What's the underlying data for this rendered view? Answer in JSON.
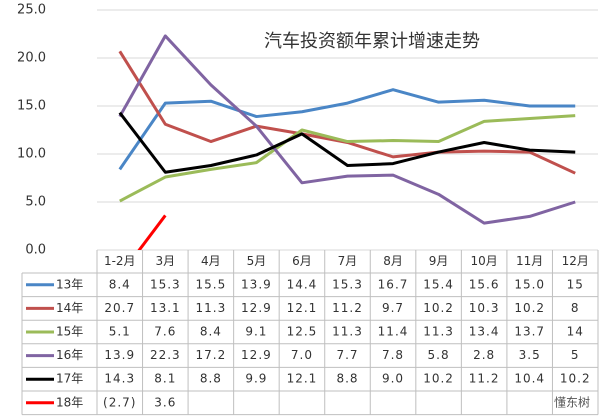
{
  "chart_data": {
    "type": "line",
    "title": "汽车投资额年累计增速走势",
    "categories": [
      "1-2月",
      "3月",
      "4月",
      "5月",
      "6月",
      "7月",
      "8月",
      "9月",
      "10月",
      "11月",
      "12月"
    ],
    "series": [
      {
        "name": "13年",
        "color": "#4a86c6",
        "values": [
          8.4,
          15.3,
          15.5,
          13.9,
          14.4,
          15.3,
          16.7,
          15.4,
          15.6,
          15.0,
          15
        ],
        "value_labels": [
          "8.4",
          "15.3",
          "15.5",
          "13.9",
          "14.4",
          "15.3",
          "16.7",
          "15.4",
          "15.6",
          "15.0",
          "15"
        ]
      },
      {
        "name": "14年",
        "color": "#c0504d",
        "values": [
          20.7,
          13.1,
          11.3,
          12.9,
          12.1,
          11.2,
          9.7,
          10.2,
          10.3,
          10.2,
          8
        ],
        "value_labels": [
          "20.7",
          "13.1",
          "11.3",
          "12.9",
          "12.1",
          "11.2",
          "9.7",
          "10.2",
          "10.3",
          "10.2",
          "8"
        ]
      },
      {
        "name": "15年",
        "color": "#9bbb59",
        "values": [
          5.1,
          7.6,
          8.4,
          9.1,
          12.5,
          11.3,
          11.4,
          11.3,
          13.4,
          13.7,
          14
        ],
        "value_labels": [
          "5.1",
          "7.6",
          "8.4",
          "9.1",
          "12.5",
          "11.3",
          "11.4",
          "11.3",
          "13.4",
          "13.7",
          "14"
        ]
      },
      {
        "name": "16年",
        "color": "#8064a2",
        "values": [
          13.9,
          22.3,
          17.2,
          12.9,
          7.0,
          7.7,
          7.8,
          5.8,
          2.8,
          3.5,
          5
        ],
        "value_labels": [
          "13.9",
          "22.3",
          "17.2",
          "12.9",
          "7.0",
          "7.7",
          "7.8",
          "5.8",
          "2.8",
          "3.5",
          "5"
        ]
      },
      {
        "name": "17年",
        "color": "#000000",
        "values": [
          14.3,
          8.1,
          8.8,
          9.9,
          12.1,
          8.8,
          9.0,
          10.2,
          11.2,
          10.4,
          10.2
        ],
        "value_labels": [
          "14.3",
          "8.1",
          "8.8",
          "9.9",
          "12.1",
          "8.8",
          "9.0",
          "10.2",
          "11.2",
          "10.4",
          "10.2"
        ]
      },
      {
        "name": "18年",
        "color": "#ff0000",
        "values": [
          -2.7,
          3.6,
          null,
          null,
          null,
          null,
          null,
          null,
          null,
          null,
          null
        ],
        "value_labels": [
          "(2.7)",
          "3.6",
          null,
          null,
          null,
          null,
          null,
          null,
          null,
          null,
          null
        ]
      }
    ],
    "ylim": [
      0,
      25
    ],
    "yticks": [
      {
        "value": 0,
        "label": "0.0"
      },
      {
        "value": 5,
        "label": "5.0"
      },
      {
        "value": 10,
        "label": "10.0"
      },
      {
        "value": 15,
        "label": "15.0"
      },
      {
        "value": 20,
        "label": "20.0"
      },
      {
        "value": 25,
        "label": "25.0"
      }
    ],
    "grid": true,
    "watermark": "懂东树"
  }
}
